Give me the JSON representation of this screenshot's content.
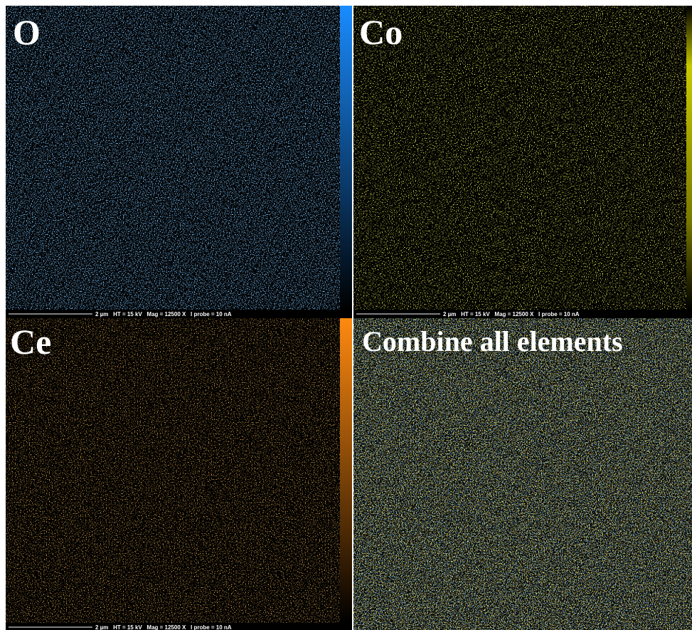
{
  "panels": [
    {
      "label": "O",
      "scale_bar": "2 µm   HT = 15 kV   Mag = 12500 X   I probe = 10 nA"
    },
    {
      "label": "Co",
      "scale_bar": "2 µm   HT = 15 kV   Mag = 12500 X   I probe = 10 nA"
    },
    {
      "label": "Ce",
      "scale_bar": "2 µm   HT = 15 kV   Mag = 12500 X   I probe = 10 nA"
    },
    {
      "label": "Combine all elements"
    }
  ]
}
